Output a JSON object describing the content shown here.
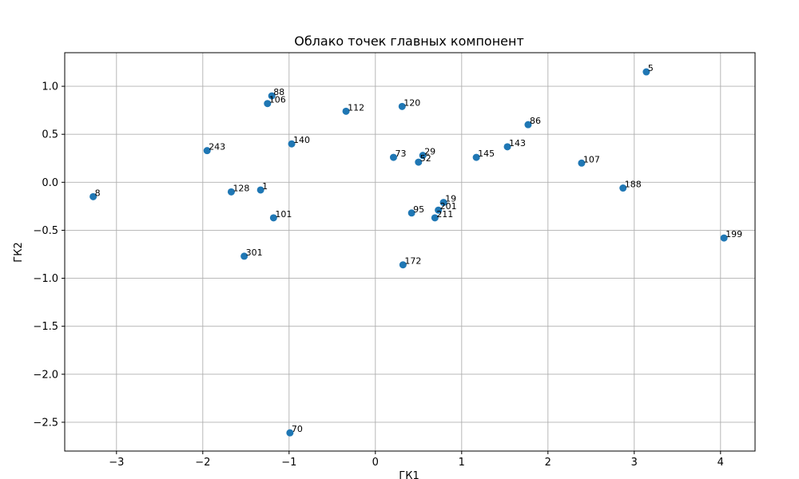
{
  "chart_data": {
    "type": "scatter",
    "title": "Облако точек главных компонент",
    "xlabel": "ГК1",
    "ylabel": "ГК2",
    "xlim": [
      -3.6,
      4.4
    ],
    "ylim": [
      -2.8,
      1.35
    ],
    "xticks": [
      -3,
      -2,
      -1,
      0,
      1,
      2,
      3,
      4
    ],
    "yticks": [
      -2.5,
      -2.0,
      -1.5,
      -1.0,
      -0.5,
      0.0,
      0.5,
      1.0
    ],
    "xtick_labels": [
      "−3",
      "−2",
      "−1",
      "0",
      "1",
      "2",
      "3",
      "4"
    ],
    "ytick_labels": [
      "−2.5",
      "−2.0",
      "−1.5",
      "−1.0",
      "−0.5",
      "0.0",
      "0.5",
      "1.0"
    ],
    "grid": true,
    "point_color": "#1f77b4",
    "points": [
      {
        "x": 3.14,
        "y": 1.15,
        "label": "5"
      },
      {
        "x": -1.2,
        "y": 0.9,
        "label": "88"
      },
      {
        "x": -1.25,
        "y": 0.82,
        "label": "106"
      },
      {
        "x": -0.34,
        "y": 0.74,
        "label": "112"
      },
      {
        "x": 0.31,
        "y": 0.79,
        "label": "120"
      },
      {
        "x": 1.77,
        "y": 0.6,
        "label": "86"
      },
      {
        "x": -1.95,
        "y": 0.33,
        "label": "243"
      },
      {
        "x": -0.97,
        "y": 0.4,
        "label": "140"
      },
      {
        "x": 1.53,
        "y": 0.37,
        "label": "143"
      },
      {
        "x": 0.21,
        "y": 0.26,
        "label": "73"
      },
      {
        "x": 0.55,
        "y": 0.28,
        "label": "29"
      },
      {
        "x": 0.5,
        "y": 0.21,
        "label": "52"
      },
      {
        "x": 1.17,
        "y": 0.26,
        "label": "145"
      },
      {
        "x": 2.39,
        "y": 0.2,
        "label": "107"
      },
      {
        "x": -3.27,
        "y": -0.15,
        "label": "8"
      },
      {
        "x": -1.67,
        "y": -0.1,
        "label": "128"
      },
      {
        "x": -1.33,
        "y": -0.08,
        "label": "1"
      },
      {
        "x": 2.87,
        "y": -0.06,
        "label": "188"
      },
      {
        "x": 0.79,
        "y": -0.21,
        "label": "19"
      },
      {
        "x": -1.18,
        "y": -0.37,
        "label": "101"
      },
      {
        "x": 0.42,
        "y": -0.32,
        "label": "95"
      },
      {
        "x": 0.73,
        "y": -0.29,
        "label": "201"
      },
      {
        "x": 0.69,
        "y": -0.37,
        "label": "211"
      },
      {
        "x": 4.04,
        "y": -0.58,
        "label": "199"
      },
      {
        "x": -1.52,
        "y": -0.77,
        "label": "301"
      },
      {
        "x": 0.32,
        "y": -0.86,
        "label": "172"
      },
      {
        "x": -0.99,
        "y": -2.61,
        "label": "70"
      }
    ]
  }
}
